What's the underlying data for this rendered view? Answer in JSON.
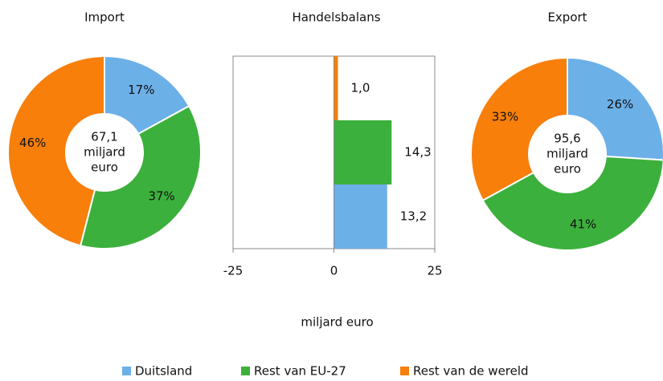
{
  "chart_data": [
    {
      "type": "donut",
      "title": "Import",
      "values": [
        17,
        37,
        46
      ],
      "value_labels": [
        "17%",
        "37%",
        "46%"
      ],
      "colors": [
        "#6cb0e8",
        "#3cb03c",
        "#f77f0a"
      ],
      "center_lines": [
        "67,1",
        "miljard",
        "euro"
      ]
    },
    {
      "type": "hbar",
      "title": "Handelsbalans",
      "categories": [
        null,
        null,
        null
      ],
      "values": [
        13.2,
        14.3,
        1.0
      ],
      "value_labels": [
        "13,2",
        "14,3",
        "1,0"
      ],
      "colors": [
        "#6cb0e8",
        "#3cb03c",
        "#f77f0a"
      ],
      "xlim": [
        -25,
        25
      ],
      "xticks": [
        -25,
        0,
        25
      ],
      "xlabel": "miljard euro"
    },
    {
      "type": "donut",
      "title": "Export",
      "values": [
        26,
        41,
        33
      ],
      "value_labels": [
        "26%",
        "41%",
        "33%"
      ],
      "colors": [
        "#6cb0e8",
        "#3cb03c",
        "#f77f0a"
      ],
      "center_lines": [
        "95,6",
        "miljard",
        "euro"
      ]
    }
  ],
  "legend": {
    "labels": [
      "Duitsland",
      "Rest van EU-27",
      "Rest van de wereld"
    ],
    "colors": [
      "#6cb0e8",
      "#3cb03c",
      "#f77f0a"
    ]
  }
}
